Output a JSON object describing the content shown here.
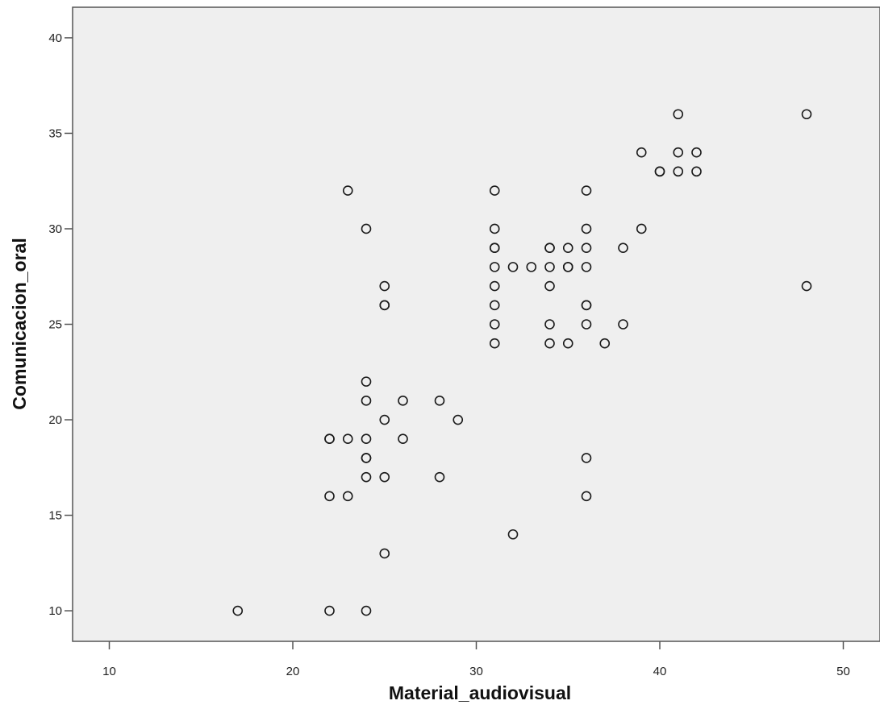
{
  "chart_data": {
    "type": "scatter",
    "xlabel": "Material_audiovisual",
    "ylabel": "Comunicacion_oral",
    "xlim": [
      8,
      52
    ],
    "ylim": [
      8.4,
      41.6
    ],
    "xticks": [
      10,
      20,
      30,
      40,
      50
    ],
    "yticks": [
      10,
      15,
      20,
      25,
      30,
      35,
      40
    ],
    "grid": false,
    "legend": "none",
    "colors": {
      "plot_background": "#efefef",
      "marker_stroke": "#1a1a1a",
      "axis": "#555555"
    },
    "marker": "hollow-circle",
    "points": [
      [
        17,
        10
      ],
      [
        22,
        10
      ],
      [
        24,
        10
      ],
      [
        25,
        13
      ],
      [
        32,
        14
      ],
      [
        22,
        16
      ],
      [
        23,
        16
      ],
      [
        36,
        16
      ],
      [
        24,
        17
      ],
      [
        25,
        17
      ],
      [
        28,
        17
      ],
      [
        24,
        18
      ],
      [
        24,
        18
      ],
      [
        36,
        18
      ],
      [
        22,
        19
      ],
      [
        22,
        19
      ],
      [
        23,
        19
      ],
      [
        24,
        19
      ],
      [
        26,
        19
      ],
      [
        25,
        20
      ],
      [
        29,
        20
      ],
      [
        24,
        21
      ],
      [
        26,
        21
      ],
      [
        28,
        21
      ],
      [
        24,
        22
      ],
      [
        31,
        24
      ],
      [
        34,
        24
      ],
      [
        35,
        24
      ],
      [
        37,
        24
      ],
      [
        31,
        25
      ],
      [
        34,
        25
      ],
      [
        36,
        25
      ],
      [
        38,
        25
      ],
      [
        25,
        26
      ],
      [
        25,
        26
      ],
      [
        31,
        26
      ],
      [
        36,
        26
      ],
      [
        36,
        26
      ],
      [
        25,
        27
      ],
      [
        31,
        27
      ],
      [
        34,
        27
      ],
      [
        48,
        27
      ],
      [
        31,
        28
      ],
      [
        32,
        28
      ],
      [
        33,
        28
      ],
      [
        34,
        28
      ],
      [
        35,
        28
      ],
      [
        35,
        28
      ],
      [
        36,
        28
      ],
      [
        31,
        29
      ],
      [
        31,
        29
      ],
      [
        34,
        29
      ],
      [
        34,
        29
      ],
      [
        35,
        29
      ],
      [
        36,
        29
      ],
      [
        38,
        29
      ],
      [
        24,
        30
      ],
      [
        31,
        30
      ],
      [
        36,
        30
      ],
      [
        39,
        30
      ],
      [
        23,
        32
      ],
      [
        31,
        32
      ],
      [
        36,
        32
      ],
      [
        40,
        33
      ],
      [
        40,
        33
      ],
      [
        41,
        33
      ],
      [
        42,
        33
      ],
      [
        39,
        34
      ],
      [
        41,
        34
      ],
      [
        42,
        34
      ],
      [
        41,
        36
      ],
      [
        48,
        36
      ]
    ]
  }
}
